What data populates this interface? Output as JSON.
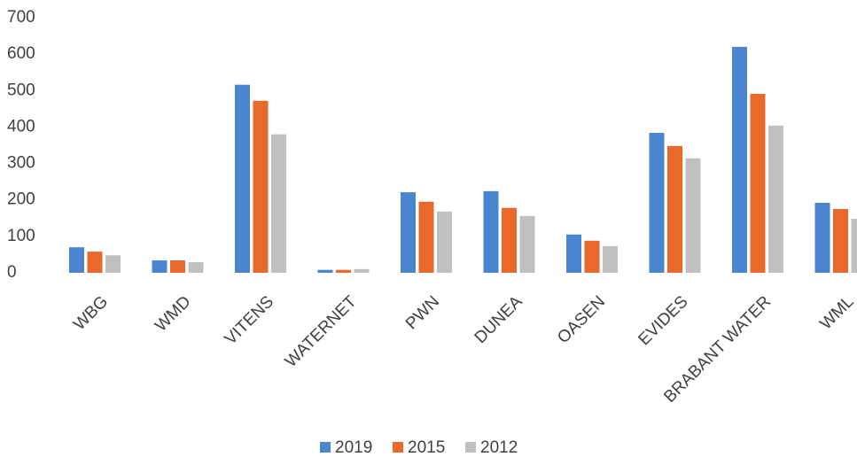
{
  "chart_data": {
    "type": "bar",
    "categories": [
      "WBG",
      "WMD",
      "VITENS",
      "WATERNET",
      "PWN",
      "DUNEA",
      "OASEN",
      "EVIDES",
      "BRABANT WATER",
      "WML"
    ],
    "series": [
      {
        "name": "2019",
        "color": "#4a86d0",
        "values": [
          70,
          34,
          516,
          8,
          221,
          224,
          105,
          384,
          620,
          192
        ]
      },
      {
        "name": "2015",
        "color": "#e8692a",
        "values": [
          58,
          34,
          472,
          8,
          195,
          178,
          88,
          348,
          491,
          175
        ]
      },
      {
        "name": "2012",
        "color": "#c0c0c0",
        "values": [
          48,
          29,
          380,
          10,
          168,
          156,
          73,
          314,
          404,
          148
        ]
      }
    ],
    "ylim": [
      0,
      700
    ],
    "yticks": [
      0,
      100,
      200,
      300,
      400,
      500,
      600,
      700
    ],
    "grid": false,
    "legend": "bottom"
  }
}
